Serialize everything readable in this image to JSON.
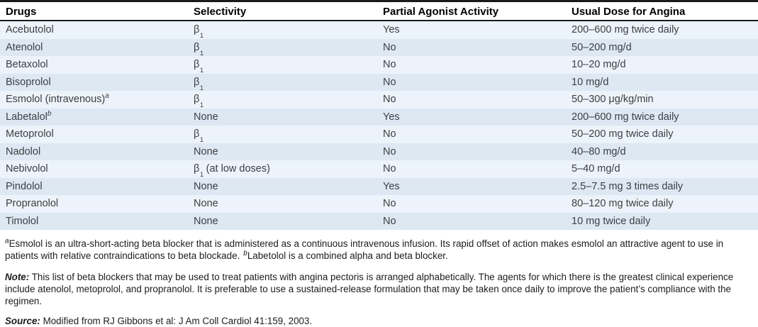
{
  "table": {
    "columns": [
      "Drugs",
      "Selectivity",
      "Partial Agonist Activity",
      "Usual Dose for Angina"
    ],
    "rows": [
      {
        "drug": "Acebutolol",
        "drug_sup": "",
        "sel_base": "β",
        "sel_sub": "1",
        "sel_rest": "",
        "paa": "Yes",
        "dose": "200–600 mg twice daily"
      },
      {
        "drug": "Atenolol",
        "drug_sup": "",
        "sel_base": "β",
        "sel_sub": "1",
        "sel_rest": "",
        "paa": "No",
        "dose": "50–200 mg/d"
      },
      {
        "drug": "Betaxolol",
        "drug_sup": "",
        "sel_base": "β",
        "sel_sub": "1",
        "sel_rest": "",
        "paa": "No",
        "dose": "10–20 mg/d"
      },
      {
        "drug": "Bisoprolol",
        "drug_sup": "",
        "sel_base": "β",
        "sel_sub": "1",
        "sel_rest": "",
        "paa": "No",
        "dose": "10 mg/d"
      },
      {
        "drug": "Esmolol (intravenous)",
        "drug_sup": "a",
        "sel_base": "β",
        "sel_sub": "1",
        "sel_rest": "",
        "paa": "No",
        "dose": "50–300 μg/kg/min"
      },
      {
        "drug": "Labetalol",
        "drug_sup": "b",
        "sel_base": "None",
        "sel_sub": "",
        "sel_rest": "",
        "paa": "Yes",
        "dose": "200–600 mg twice daily"
      },
      {
        "drug": "Metoprolol",
        "drug_sup": "",
        "sel_base": "β",
        "sel_sub": "1",
        "sel_rest": "",
        "paa": "No",
        "dose": "50–200 mg twice daily"
      },
      {
        "drug": "Nadolol",
        "drug_sup": "",
        "sel_base": "None",
        "sel_sub": "",
        "sel_rest": "",
        "paa": "No",
        "dose": "40–80 mg/d"
      },
      {
        "drug": "Nebivolol",
        "drug_sup": "",
        "sel_base": "β",
        "sel_sub": "1",
        "sel_rest": " (at low doses)",
        "paa": "No",
        "dose": "5–40 mg/d"
      },
      {
        "drug": "Pindolol",
        "drug_sup": "",
        "sel_base": "None",
        "sel_sub": "",
        "sel_rest": "",
        "paa": "Yes",
        "dose": "2.5–7.5 mg 3 times daily"
      },
      {
        "drug": "Propranolol",
        "drug_sup": "",
        "sel_base": "None",
        "sel_sub": "",
        "sel_rest": "",
        "paa": "No",
        "dose": "80–120 mg twice daily"
      },
      {
        "drug": "Timolol",
        "drug_sup": "",
        "sel_base": "None",
        "sel_sub": "",
        "sel_rest": "",
        "paa": "No",
        "dose": "10 mg twice daily"
      }
    ]
  },
  "footnotes": {
    "marker_a": "a",
    "text_a": "Esmolol is an ultra-short-acting beta blocker that is administered as a continuous intravenous infusion. Its rapid offset of action makes esmolol an attractive agent to use in patients with relative contraindications to beta blockade.",
    "marker_b": "b",
    "text_b": "Labetolol is a combined alpha and beta blocker."
  },
  "note": {
    "label": "Note:",
    "text": " This list of beta blockers that may be used to treat patients with angina pectoris is arranged alphabetically. The agents for which there is the greatest clinical experience include atenolol, metoprolol, and propranolol. It is preferable to use a sustained-release formulation that may be taken once daily to improve the patient’s compliance with the regimen."
  },
  "source": {
    "label": "Source:",
    "text": " Modified from RJ Gibbons et al: J Am Coll Cardiol 41:159, 2003."
  },
  "colors": {
    "row_light": "#ecf3fa",
    "row_dark": "#dde8f3",
    "border": "#1a1a1a",
    "cell_text": "#3d4043"
  }
}
